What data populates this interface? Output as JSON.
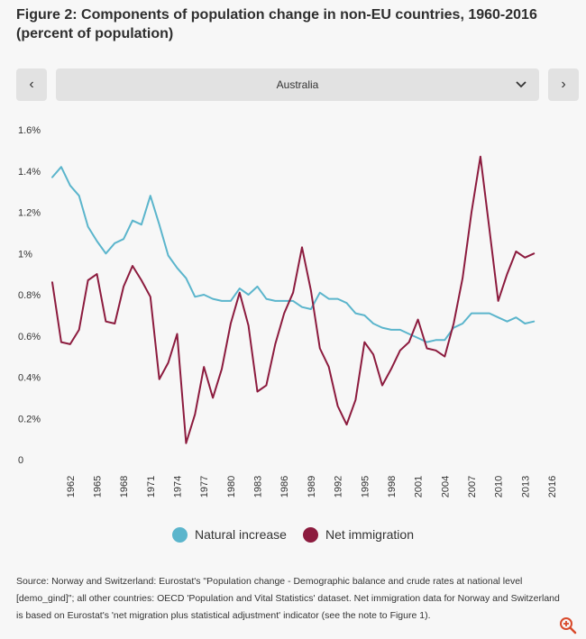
{
  "title": "Figure 2: Components of population change in non-EU countries, 1960-2016 (percent of population)",
  "selector": {
    "prev_label": "‹",
    "next_label": "›",
    "selected": "Australia",
    "chevron": "⌄"
  },
  "legend": [
    {
      "name": "Natural increase",
      "color": "#5bb5cc"
    },
    {
      "name": "Net immigration",
      "color": "#8c1b3e"
    }
  ],
  "source_note": "Source: Norway and Switzerland:  Eurostat's \"Population change - Demographic balance and crude rates at national level [demo_gind]\"; all other countries: OECD 'Population and Vital Statistics' dataset. Net immigration data for  Norway and Switzerland is based on Eurostat's  'net migration plus statistical adjustment' indicator (see the note to Figure 1).",
  "icons": {
    "zoom": "zoom-in-icon"
  },
  "chart_data": {
    "type": "line",
    "title": "Figure 2: Components of population change in non-EU countries, 1960-2016 (percent of population)",
    "xlabel": "",
    "ylabel": "",
    "ylim": [
      0,
      1.6
    ],
    "xlim": [
      1960,
      2016
    ],
    "y_ticks": [
      "0",
      "0.2%",
      "0.4%",
      "0.6%",
      "0.8%",
      "1%",
      "1.2%",
      "1.4%",
      "1.6%"
    ],
    "y_tick_values": [
      0,
      0.2,
      0.4,
      0.6,
      0.8,
      1.0,
      1.2,
      1.4,
      1.6
    ],
    "x_ticks": [
      "1962",
      "1965",
      "1968",
      "1971",
      "1974",
      "1977",
      "1980",
      "1983",
      "1986",
      "1989",
      "1992",
      "1995",
      "1998",
      "2001",
      "2004",
      "2007",
      "2010",
      "2013",
      "2016"
    ],
    "x_tick_values": [
      1962,
      1965,
      1968,
      1971,
      1974,
      1977,
      1980,
      1983,
      1986,
      1989,
      1992,
      1995,
      1998,
      2001,
      2004,
      2007,
      2010,
      2013,
      2016
    ],
    "x": [
      1960,
      1961,
      1962,
      1963,
      1964,
      1965,
      1966,
      1967,
      1968,
      1969,
      1970,
      1971,
      1972,
      1973,
      1974,
      1975,
      1976,
      1977,
      1978,
      1979,
      1980,
      1981,
      1982,
      1983,
      1984,
      1985,
      1986,
      1987,
      1988,
      1989,
      1990,
      1991,
      1992,
      1993,
      1994,
      1995,
      1996,
      1997,
      1998,
      1999,
      2000,
      2001,
      2002,
      2003,
      2004,
      2005,
      2006,
      2007,
      2008,
      2009,
      2010,
      2011,
      2012,
      2013,
      2014
    ],
    "series": [
      {
        "name": "Natural increase",
        "color": "#5bb5cc",
        "values": [
          1.37,
          1.42,
          1.33,
          1.28,
          1.13,
          1.06,
          1.0,
          1.05,
          1.07,
          1.16,
          1.14,
          1.28,
          1.14,
          0.99,
          0.93,
          0.88,
          0.79,
          0.8,
          0.78,
          0.77,
          0.77,
          0.83,
          0.8,
          0.84,
          0.78,
          0.77,
          0.77,
          0.77,
          0.74,
          0.73,
          0.81,
          0.78,
          0.78,
          0.76,
          0.71,
          0.7,
          0.66,
          0.64,
          0.63,
          0.63,
          0.61,
          0.59,
          0.57,
          0.58,
          0.58,
          0.64,
          0.66,
          0.71,
          0.71,
          0.71,
          0.69,
          0.67,
          0.69,
          0.66,
          0.67
        ]
      },
      {
        "name": "Net immigration",
        "color": "#8c1b3e",
        "values": [
          0.86,
          0.57,
          0.56,
          0.63,
          0.87,
          0.9,
          0.67,
          0.66,
          0.84,
          0.94,
          0.87,
          0.79,
          0.39,
          0.47,
          0.61,
          0.08,
          0.22,
          0.45,
          0.3,
          0.44,
          0.66,
          0.81,
          0.65,
          0.33,
          0.36,
          0.56,
          0.71,
          0.81,
          1.03,
          0.82,
          0.54,
          0.45,
          0.26,
          0.17,
          0.29,
          0.57,
          0.51,
          0.36,
          0.44,
          0.53,
          0.57,
          0.68,
          0.54,
          0.53,
          0.5,
          0.66,
          0.88,
          1.2,
          1.47,
          1.12,
          0.77,
          0.9,
          1.01,
          0.98,
          1.0
        ]
      }
    ]
  }
}
